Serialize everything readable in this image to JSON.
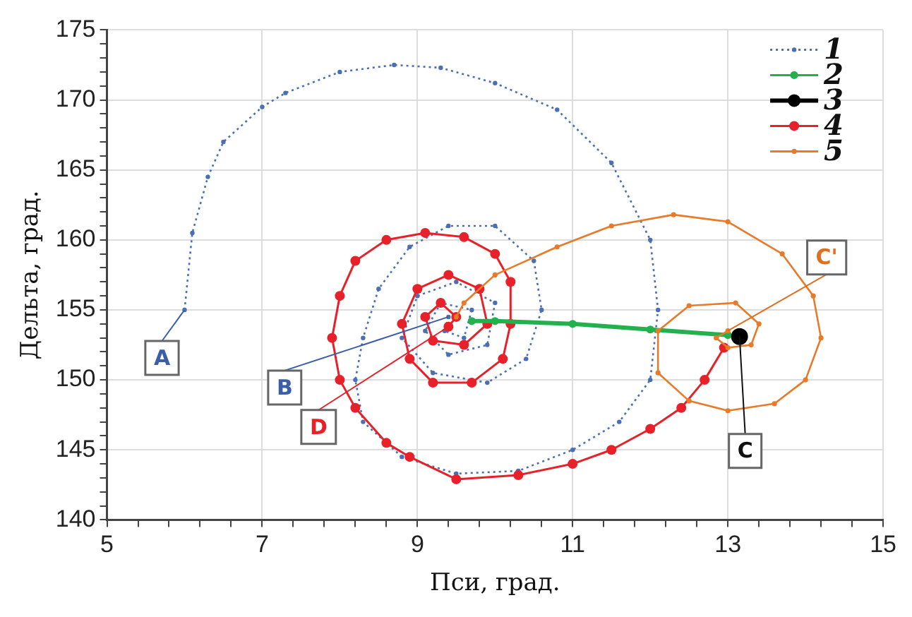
{
  "chart_data": {
    "type": "line",
    "xlabel": "Пси, град.",
    "ylabel": "Дельта, град.",
    "xlim": [
      5,
      15
    ],
    "ylim": [
      140,
      175
    ],
    "xticks": [
      5,
      {
        "value": 5.4,
        "label": null
      },
      {
        "value": 5.8,
        "label": null
      },
      {
        "value": 6.2,
        "label": null
      },
      {
        "value": 6.6,
        "label": null
      },
      7,
      {
        "value": 7.4,
        "label": null
      },
      {
        "value": 7.8,
        "label": null
      },
      {
        "value": 8.2,
        "label": null
      },
      {
        "value": 8.6,
        "label": null
      },
      9,
      {
        "value": 9.4,
        "label": null
      },
      {
        "value": 9.8,
        "label": null
      },
      {
        "value": 10.2,
        "label": null
      },
      {
        "value": 10.6,
        "label": null
      },
      11,
      {
        "value": 11.4,
        "label": null
      },
      {
        "value": 11.8,
        "label": null
      },
      {
        "value": 12.2,
        "label": null
      },
      {
        "value": 12.6,
        "label": null
      },
      13,
      {
        "value": 13.4,
        "label": null
      },
      {
        "value": 13.8,
        "label": null
      },
      {
        "value": 14.2,
        "label": null
      },
      {
        "value": 14.6,
        "label": null
      },
      15
    ],
    "yticks": [
      140,
      {
        "value": 141,
        "label": null
      },
      {
        "value": 142,
        "label": null
      },
      {
        "value": 143,
        "label": null
      },
      {
        "value": 144,
        "label": null
      },
      145,
      {
        "value": 146,
        "label": null
      },
      {
        "value": 147,
        "label": null
      },
      {
        "value": 148,
        "label": null
      },
      {
        "value": 149,
        "label": null
      },
      150,
      {
        "value": 151,
        "label": null
      },
      {
        "value": 152,
        "label": null
      },
      {
        "value": 153,
        "label": null
      },
      {
        "value": 154,
        "label": null
      },
      155,
      {
        "value": 156,
        "label": null
      },
      {
        "value": 157,
        "label": null
      },
      {
        "value": 158,
        "label": null
      },
      {
        "value": 159,
        "label": null
      },
      160,
      {
        "value": 161,
        "label": null
      },
      {
        "value": 162,
        "label": null
      },
      {
        "value": 163,
        "label": null
      },
      {
        "value": 164,
        "label": null
      },
      165,
      {
        "value": 166,
        "label": null
      },
      {
        "value": 167,
        "label": null
      },
      {
        "value": 168,
        "label": null
      },
      {
        "value": 169,
        "label": null
      },
      170,
      {
        "value": 171,
        "label": null
      },
      {
        "value": 172,
        "label": null
      },
      {
        "value": 173,
        "label": null
      },
      {
        "value": 174,
        "label": null
      },
      175
    ],
    "grid": true,
    "legend": "top right",
    "marker": "circle",
    "series": [
      {
        "name": "1",
        "color": "#4a6fb5",
        "line_style": "dotted",
        "x": [
          6,
          6.1,
          6.3,
          6.5,
          7,
          7.3,
          8,
          8.7,
          9.3,
          10,
          10.8,
          11.5,
          12,
          12.1,
          12,
          11.6,
          11,
          10.3,
          9.5,
          8.8,
          8.3,
          8.2,
          8.3,
          8.5,
          8.9,
          9.4,
          10,
          10.5,
          10.6,
          10.4,
          9.9,
          9.2,
          8.8,
          9,
          9.5,
          10,
          9.9,
          9.4,
          9.1,
          9.3,
          9.7,
          9.6,
          9.35,
          9.4
        ],
        "values": [
          155,
          160.5,
          164.5,
          167,
          169.5,
          170.5,
          172,
          172.5,
          172.3,
          171.2,
          169.3,
          165.5,
          160,
          155,
          150,
          147,
          145,
          143.5,
          143.3,
          144.5,
          147,
          150,
          153,
          156.5,
          159.5,
          161,
          161,
          158.5,
          155,
          151.5,
          149.8,
          150.5,
          153,
          156,
          157,
          155.5,
          152.5,
          151.8,
          153.5,
          155.5,
          155,
          153,
          153.5,
          154.5
        ]
      },
      {
        "name": "2",
        "color": "#22b14c",
        "line_style": "solid",
        "x": [
          9.7,
          10,
          11,
          12,
          13
        ],
        "values": [
          154.2,
          154.2,
          154,
          153.6,
          153.2
        ]
      },
      {
        "name": "3",
        "color": "#000000",
        "type": "scatter",
        "x": [
          13.15
        ],
        "values": [
          153.1
        ]
      },
      {
        "name": "4",
        "color": "#e8202a",
        "line_style": "solid",
        "x": [
          12.95,
          12.7,
          12.4,
          12,
          11.5,
          11,
          10.3,
          9.5,
          8.9,
          8.6,
          8.2,
          8,
          7.9,
          8,
          8.2,
          8.6,
          9.1,
          9.6,
          10,
          10.2,
          10.2,
          10.1,
          9.7,
          9.2,
          8.9,
          8.8,
          9,
          9.4,
          9.8,
          9.9,
          9.6,
          9.2,
          9.1,
          9.3,
          9.5,
          9.4
        ],
        "values": [
          152.3,
          150,
          148,
          146.5,
          145,
          144,
          143.2,
          142.9,
          144.5,
          145.5,
          148,
          150,
          153,
          156,
          158.5,
          160,
          160.5,
          160.2,
          159,
          157,
          154,
          151.5,
          149.8,
          149.8,
          151.5,
          154,
          156.5,
          157.5,
          156.5,
          154,
          152.5,
          152.8,
          154.5,
          155.5,
          154.5,
          153.8
        ]
      },
      {
        "name": "5",
        "color": "#e87a2a",
        "line_style": "solid",
        "x": [
          9.5,
          9.6,
          10,
          10.8,
          11.5,
          12.3,
          13,
          13.7,
          14.1,
          14.2,
          14,
          13.6,
          13,
          12.5,
          12.1,
          12.1,
          12.5,
          13.1,
          13.4,
          13.3,
          13,
          12.85,
          13
        ],
        "values": [
          154.5,
          155.5,
          157.5,
          159.5,
          161,
          161.8,
          161.3,
          159,
          156,
          153,
          150,
          148.3,
          147.8,
          148.5,
          150.5,
          153.5,
          155.3,
          155.5,
          154,
          152.5,
          152.3,
          153,
          153.5
        ]
      }
    ],
    "annotations": [
      {
        "text": "A",
        "x": 6,
        "y": 155
      },
      {
        "text": "B",
        "x": 9.4,
        "y": 154.5
      },
      {
        "text": "C",
        "x": 13.15,
        "y": 153.1
      },
      {
        "text": "C'",
        "x": 13,
        "y": 153.5
      },
      {
        "text": "D",
        "x": 9.4,
        "y": 153.8
      }
    ]
  }
}
